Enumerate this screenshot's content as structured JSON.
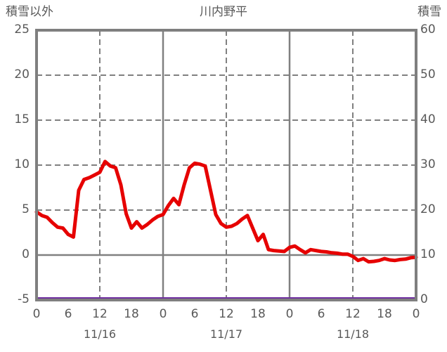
{
  "header": {
    "left_axis_label": "積雪以外",
    "title": "川内野平",
    "right_axis_label": "積雪"
  },
  "colors": {
    "text": "#595959",
    "frame": "#7f7f7f",
    "gridline": "#808080",
    "temperature_line": "#e60000",
    "snow_line": "#7030a0",
    "background": "#ffffff"
  },
  "chart_data": {
    "type": "line",
    "title": "川内野平",
    "grid": "dashed every 5 units horizontal, every 12 hours vertical; solid at 0 value and day boundaries",
    "legend_position": "none",
    "left_axis": {
      "label": "積雪以外",
      "ticks": [
        25,
        20,
        15,
        10,
        5,
        0,
        -5
      ],
      "range": [
        -5,
        25
      ]
    },
    "right_axis": {
      "label": "積雪",
      "ticks": [
        60,
        50,
        40,
        30,
        20,
        10,
        0
      ],
      "range": [
        0,
        60
      ]
    },
    "x_axis": {
      "range_hours": [
        0,
        72
      ],
      "hour_label_step": 6,
      "hour_labels": [
        "0",
        "6",
        "12",
        "18",
        "0",
        "6",
        "12",
        "18",
        "0",
        "6",
        "12",
        "18",
        "0"
      ],
      "date_labels": [
        "11/16",
        "11/17",
        "11/18"
      ],
      "date_label_center_hours": [
        12,
        36,
        60
      ]
    },
    "series": [
      {
        "name": "積雪以外",
        "axis": "left",
        "color": "#e60000",
        "x_hours": [
          0,
          1,
          2,
          3,
          4,
          5,
          6,
          7,
          8,
          9,
          10,
          11,
          12,
          13,
          14,
          15,
          16,
          17,
          18,
          19,
          20,
          21,
          22,
          23,
          24,
          25,
          26,
          27,
          28,
          29,
          30,
          31,
          32,
          33,
          34,
          35,
          36,
          37,
          38,
          39,
          40,
          41,
          42,
          43,
          44,
          45,
          46,
          47,
          48,
          49,
          50,
          51,
          52,
          53,
          54,
          55,
          56,
          57,
          58,
          59,
          60,
          61,
          62,
          63,
          64,
          65,
          66,
          67,
          68,
          69,
          70,
          71,
          72
        ],
        "values": [
          4.8,
          4.4,
          4.2,
          3.6,
          3.1,
          3.0,
          2.3,
          2.0,
          7.2,
          8.4,
          8.6,
          8.9,
          9.2,
          10.4,
          9.9,
          9.7,
          7.8,
          4.6,
          3.0,
          3.7,
          3.0,
          3.4,
          3.9,
          4.3,
          4.5,
          5.5,
          6.3,
          5.6,
          7.8,
          9.7,
          10.2,
          10.1,
          9.9,
          7.2,
          4.5,
          3.5,
          3.1,
          3.2,
          3.5,
          4.0,
          4.4,
          3.0,
          1.6,
          2.3,
          0.6,
          0.5,
          0.45,
          0.4,
          0.85,
          1.0,
          0.6,
          0.25,
          0.6,
          0.5,
          0.4,
          0.35,
          0.25,
          0.2,
          0.1,
          0.1,
          -0.15,
          -0.6,
          -0.4,
          -0.75,
          -0.7,
          -0.6,
          -0.4,
          -0.55,
          -0.6,
          -0.5,
          -0.45,
          -0.3,
          -0.25
        ]
      },
      {
        "name": "積雪",
        "axis": "right",
        "color": "#7030a0",
        "x_hours": [
          0,
          72
        ],
        "values": [
          0,
          0
        ]
      }
    ]
  }
}
